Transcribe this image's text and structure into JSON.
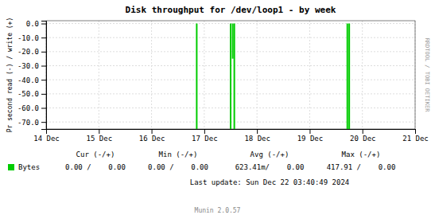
{
  "chart_data": {
    "type": "bar",
    "title": "Disk throughput for /dev/loop1 - by week",
    "y_label": "Pr second read (-) / write (+)",
    "x": [
      2.857,
      3.5,
      3.54,
      3.57,
      5.714,
      5.75
    ],
    "series": [
      {
        "name": "Bytes",
        "color": "#00cc00",
        "values": [
          -75,
          -75,
          -25,
          -75,
          -75,
          -75
        ]
      }
    ],
    "xlim": [
      0,
      7
    ],
    "xticks": [
      {
        "value": 0,
        "label": "14 Dec"
      },
      {
        "value": 1,
        "label": "15 Dec"
      },
      {
        "value": 2,
        "label": "16 Dec"
      },
      {
        "value": 3,
        "label": "17 Dec"
      },
      {
        "value": 4,
        "label": "18 Dec"
      },
      {
        "value": 5,
        "label": "19 Dec"
      },
      {
        "value": 6,
        "label": "20 Dec"
      },
      {
        "value": 7,
        "label": "21 Dec"
      }
    ],
    "ylim": [
      -75,
      2
    ],
    "yticks": [
      {
        "value": 0.0,
        "label": "0.0"
      },
      {
        "value": -10.0,
        "label": "-10.0"
      },
      {
        "value": -20.0,
        "label": "-20.0"
      },
      {
        "value": -30.0,
        "label": "-30.0"
      },
      {
        "value": -40.0,
        "label": "-40.0"
      },
      {
        "value": -50.0,
        "label": "-50.0"
      },
      {
        "value": -60.0,
        "label": "-60.0"
      },
      {
        "value": -70.0,
        "label": "-70.0"
      }
    ],
    "grid": true,
    "legend": "bottom",
    "table": {
      "columns": [
        "Cur (-/+)",
        "Min (-/+)",
        "Avg (-/+)",
        "Max (-/+)"
      ],
      "cells": [
        "0.00 /    0.00",
        "0.00 /    0.00",
        "623.41m/    0.00",
        "417.91 /    0.00"
      ]
    },
    "annotations": [
      "RRDTOOL / TOBI OETIKER",
      "Last update: Sun Dec 22 03:40:49 2024",
      "Munin 2.0.57"
    ]
  }
}
